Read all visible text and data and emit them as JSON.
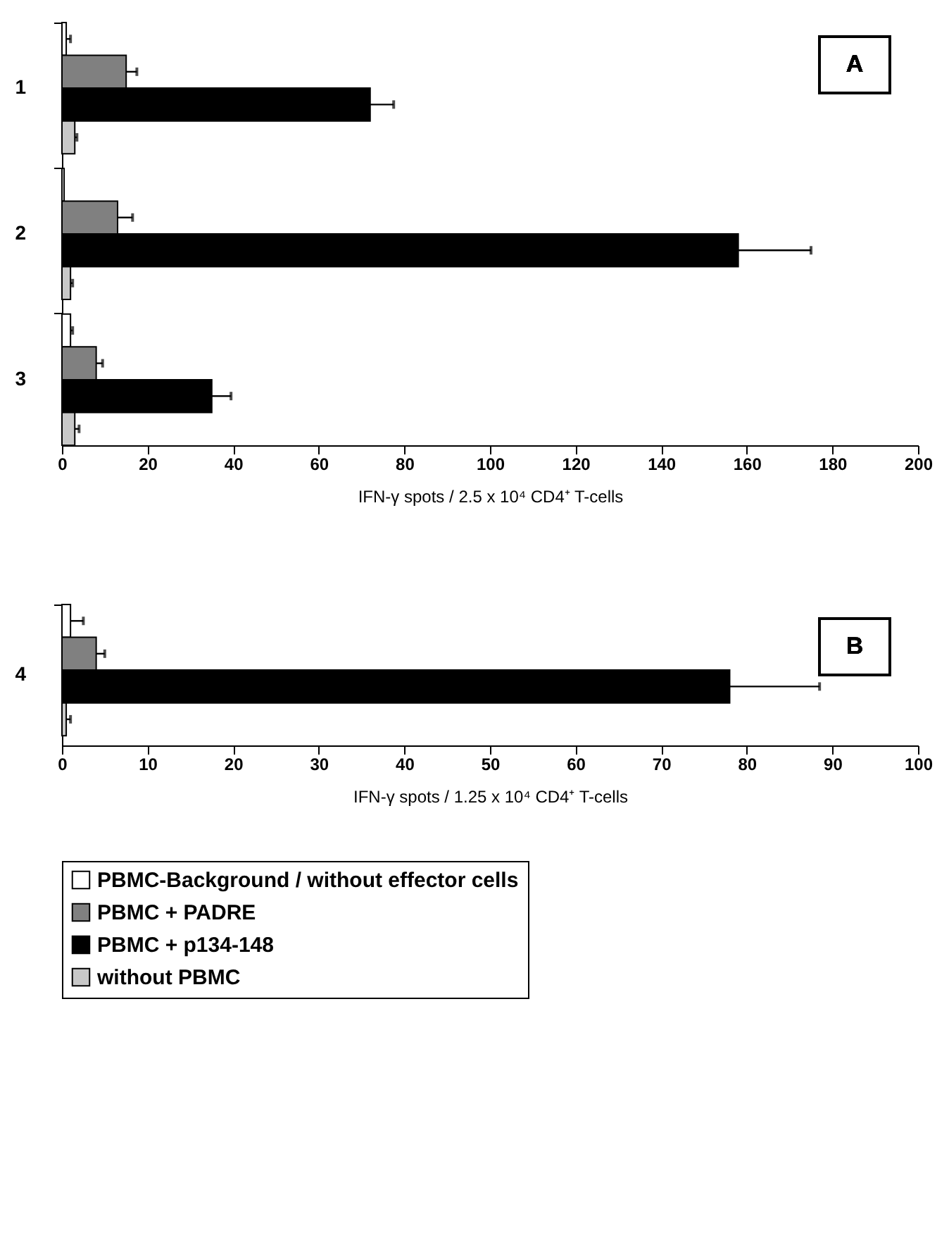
{
  "chart_data": [
    {
      "type": "bar",
      "orientation": "horizontal",
      "categories": [
        "1",
        "2",
        "3"
      ],
      "xlabel": "IFN-γ spots / 2.5 x 10⁴ CD4⁺ T-cells",
      "annotations": [
        "A"
      ],
      "xlim": [
        0,
        200
      ],
      "xticks": [
        0,
        20,
        40,
        60,
        80,
        100,
        120,
        140,
        160,
        180,
        200
      ],
      "series": [
        {
          "color": "#ffffff",
          "values": [
            1,
            0.5,
            2
          ],
          "errors": [
            1,
            null,
            0.5
          ]
        },
        {
          "color": "#808080",
          "values": [
            15,
            13,
            8
          ],
          "errors": [
            2.5,
            3.5,
            1.5
          ]
        },
        {
          "color": "#000000",
          "values": [
            72,
            158,
            35
          ],
          "errors": [
            5.5,
            17,
            4.5
          ]
        },
        {
          "color": "#c8c8c8",
          "values": [
            3,
            2,
            3
          ],
          "errors": [
            0.5,
            0.5,
            1
          ]
        }
      ]
    },
    {
      "type": "bar",
      "orientation": "horizontal",
      "categories": [
        "4"
      ],
      "xlabel": "IFN-γ spots / 1.25 x 10⁴ CD4⁺ T-cells",
      "annotations": [
        "B"
      ],
      "xlim": [
        0,
        100
      ],
      "xticks": [
        0,
        10,
        20,
        30,
        40,
        50,
        60,
        70,
        80,
        90,
        100
      ],
      "legend": "bottom",
      "series": [
        {
          "name": "PBMC-Background / without effector cells",
          "color": "#ffffff",
          "values": [
            1
          ],
          "errors": [
            1.5
          ]
        },
        {
          "name": "PBMC + PADRE",
          "color": "#808080",
          "values": [
            4
          ],
          "errors": [
            1
          ]
        },
        {
          "name": "PBMC + p134-148",
          "color": "#000000",
          "values": [
            78
          ],
          "errors": [
            10.5
          ]
        },
        {
          "name": "without PBMC",
          "color": "#c8c8c8",
          "values": [
            0.5
          ],
          "errors": [
            0.5
          ]
        }
      ]
    }
  ]
}
